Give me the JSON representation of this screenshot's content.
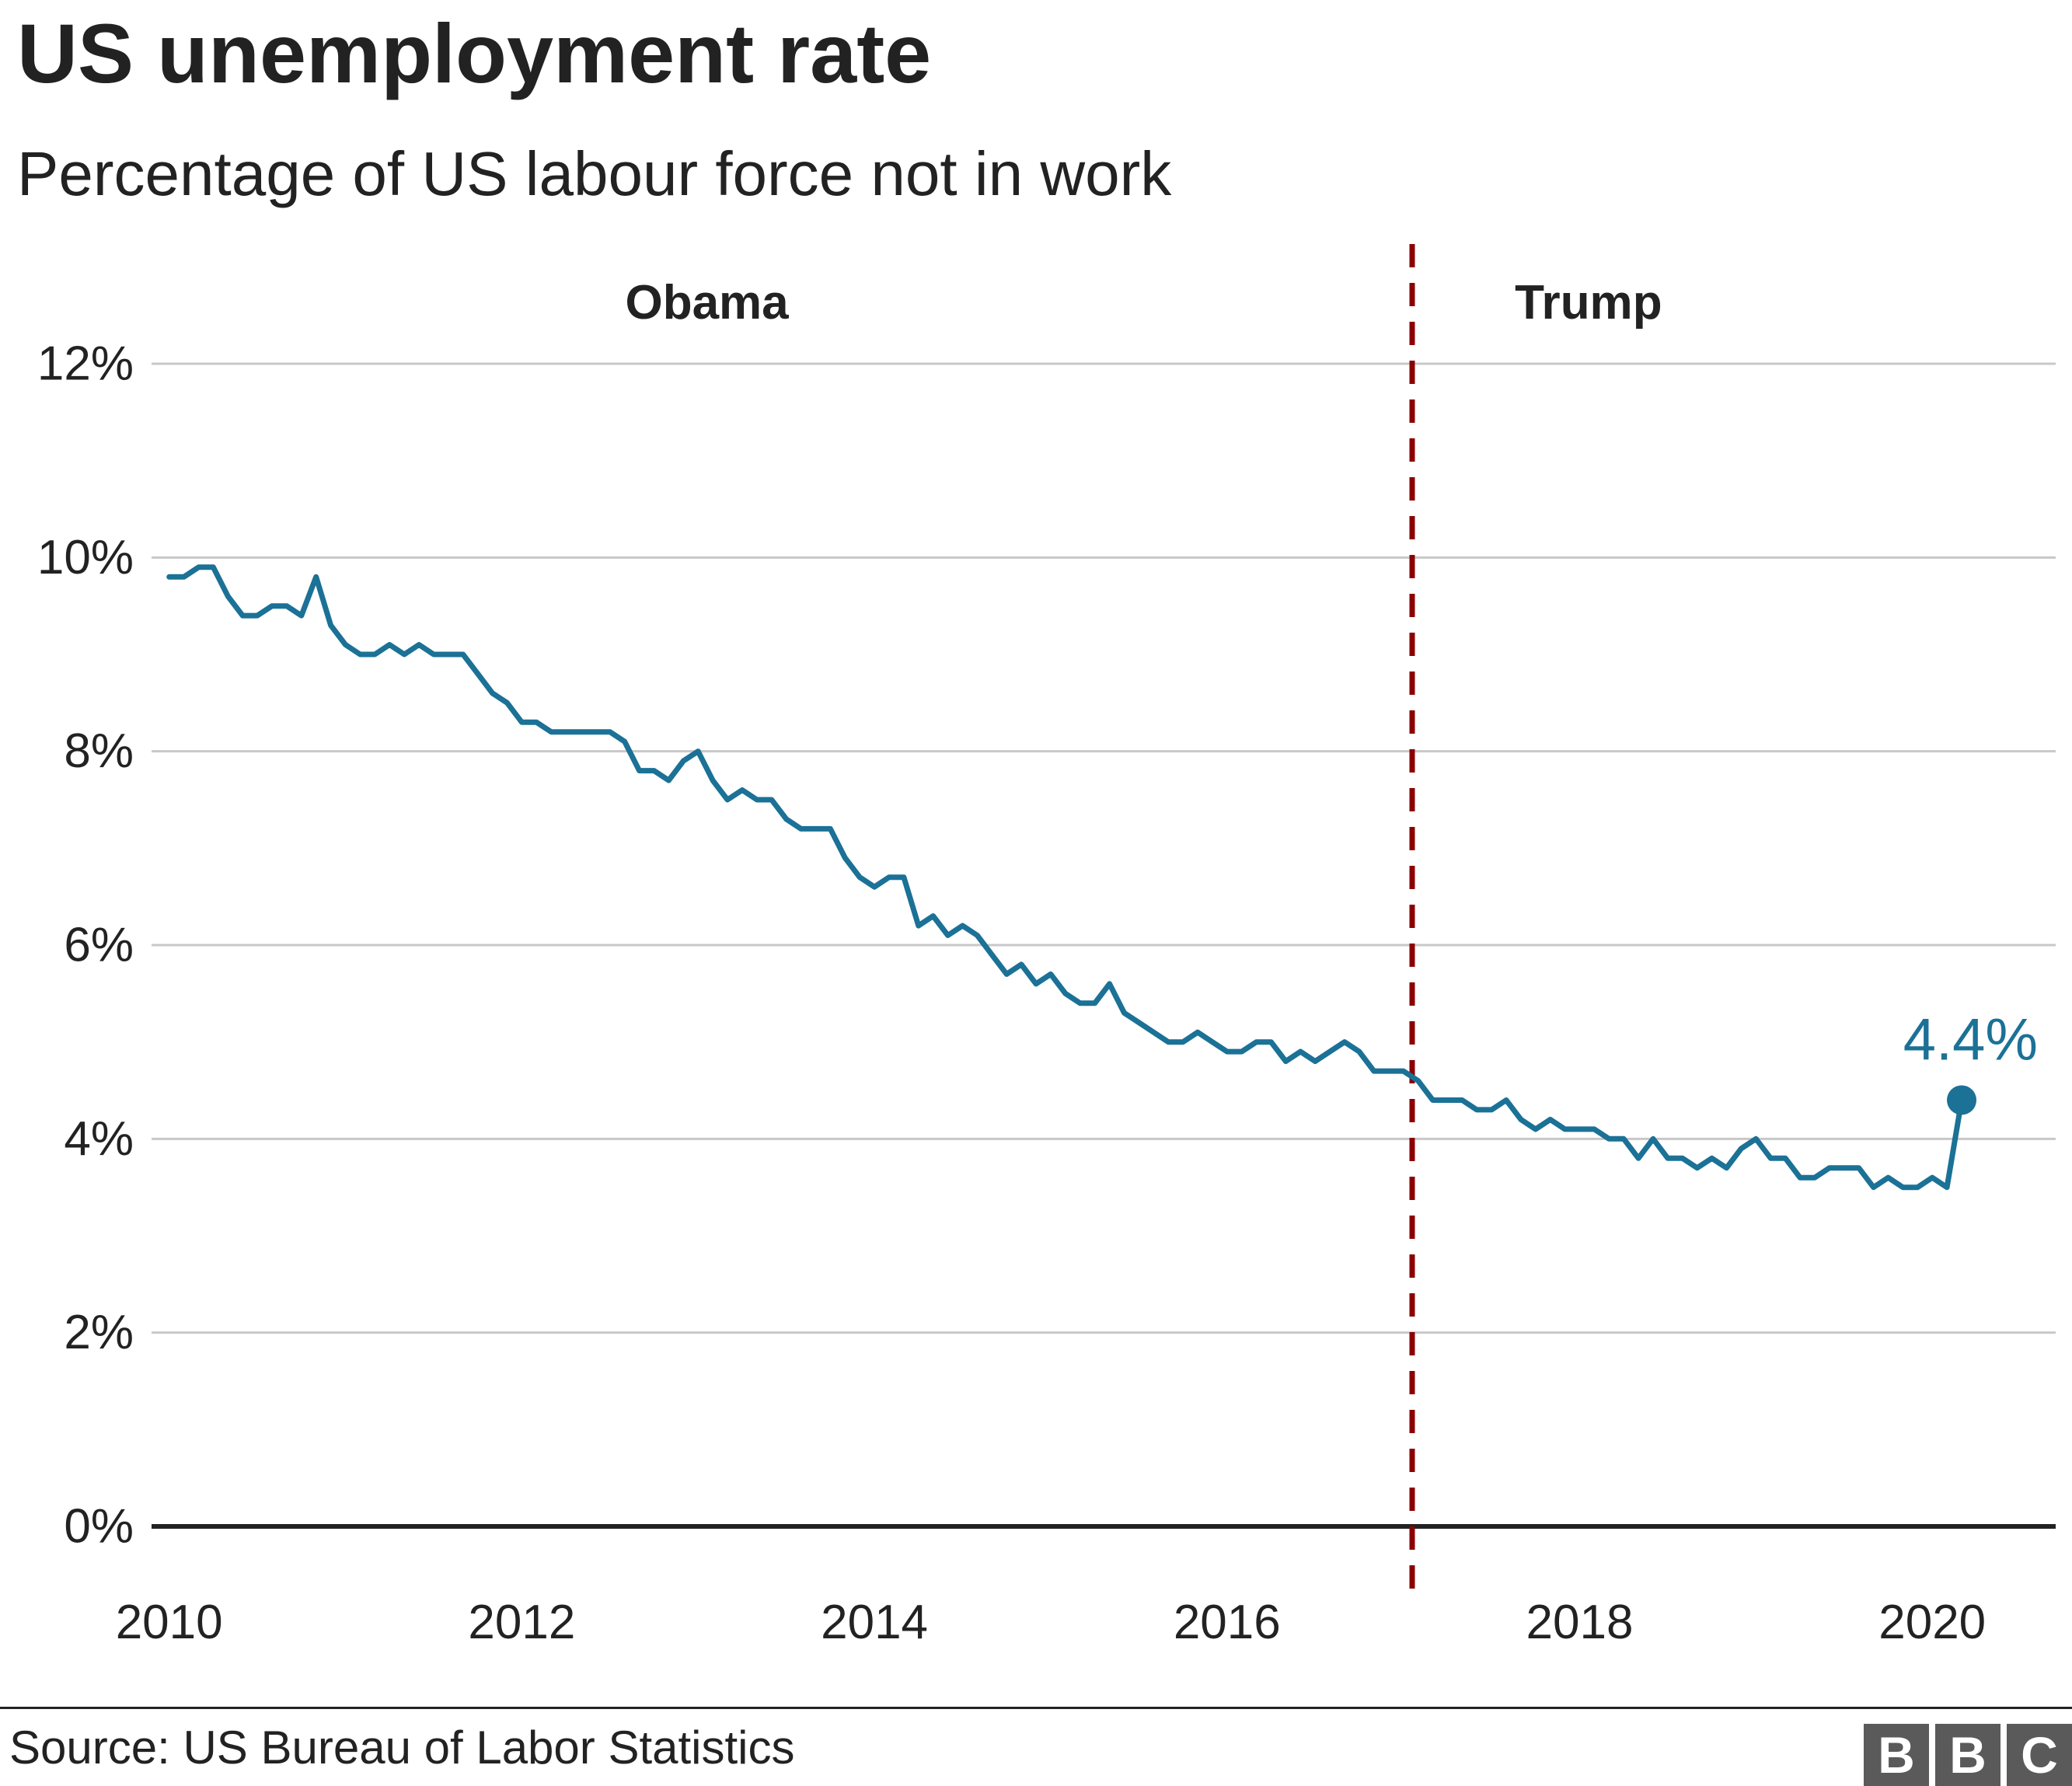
{
  "title": "US unemployment rate",
  "subtitle": "Percentage of US labour force not in work",
  "source": "Source: US Bureau of Labor Statistics",
  "logo": [
    "B",
    "B",
    "C"
  ],
  "colors": {
    "line": "#1b7196",
    "divider": "#8b0000",
    "grid": "#c8c8c8",
    "axis": "#222222",
    "text": "#222222",
    "logo": "#5a5a5a"
  },
  "chart_data": {
    "type": "line",
    "title": "US unemployment rate",
    "subtitle": "Percentage of US labour force not in work",
    "ylabel": "",
    "xlabel": "",
    "ylim": [
      0,
      12
    ],
    "xlim": [
      2009.9,
      2020.7
    ],
    "grid": true,
    "y_ticks": [
      {
        "value": 0,
        "label": "0%"
      },
      {
        "value": 2,
        "label": "2%"
      },
      {
        "value": 4,
        "label": "4%"
      },
      {
        "value": 6,
        "label": "6%"
      },
      {
        "value": 8,
        "label": "8%"
      },
      {
        "value": 10,
        "label": "10%"
      },
      {
        "value": 12,
        "label": "12%"
      }
    ],
    "x_ticks": [
      {
        "value": 2010,
        "label": "2010"
      },
      {
        "value": 2012,
        "label": "2012"
      },
      {
        "value": 2014,
        "label": "2014"
      },
      {
        "value": 2016,
        "label": "2016"
      },
      {
        "value": 2018,
        "label": "2018"
      },
      {
        "value": 2020,
        "label": "2020"
      }
    ],
    "divider": {
      "x": 2017.05
    },
    "period_labels": [
      {
        "label": "Obama",
        "x": 2013.05
      },
      {
        "label": "Trump",
        "x": 2018.05
      }
    ],
    "series": [
      {
        "x_start": "2010-01",
        "frequency": "monthly",
        "values": [
          9.8,
          9.8,
          9.9,
          9.9,
          9.6,
          9.4,
          9.4,
          9.5,
          9.5,
          9.4,
          9.8,
          9.3,
          9.1,
          9.0,
          9.0,
          9.1,
          9.0,
          9.1,
          9.0,
          9.0,
          9.0,
          8.8,
          8.6,
          8.5,
          8.3,
          8.3,
          8.2,
          8.2,
          8.2,
          8.2,
          8.2,
          8.1,
          7.8,
          7.8,
          7.7,
          7.9,
          8.0,
          7.7,
          7.5,
          7.6,
          7.5,
          7.5,
          7.3,
          7.2,
          7.2,
          7.2,
          6.9,
          6.7,
          6.6,
          6.7,
          6.7,
          6.2,
          6.3,
          6.1,
          6.2,
          6.1,
          5.9,
          5.7,
          5.8,
          5.6,
          5.7,
          5.5,
          5.4,
          5.4,
          5.6,
          5.3,
          5.2,
          5.1,
          5.0,
          5.0,
          5.1,
          5.0,
          4.9,
          4.9,
          5.0,
          5.0,
          4.8,
          4.9,
          4.8,
          4.9,
          5.0,
          4.9,
          4.7,
          4.7,
          4.7,
          4.6,
          4.4,
          4.4,
          4.4,
          4.3,
          4.3,
          4.4,
          4.2,
          4.1,
          4.2,
          4.1,
          4.1,
          4.1,
          4.0,
          4.0,
          3.8,
          4.0,
          3.8,
          3.8,
          3.7,
          3.8,
          3.7,
          3.9,
          4.0,
          3.8,
          3.8,
          3.6,
          3.6,
          3.7,
          3.7,
          3.7,
          3.5,
          3.6,
          3.5,
          3.5,
          3.6,
          3.5,
          4.4
        ]
      }
    ],
    "annotations": [
      {
        "label": "4.4%",
        "x": "2020-03",
        "y": 4.4
      }
    ]
  }
}
